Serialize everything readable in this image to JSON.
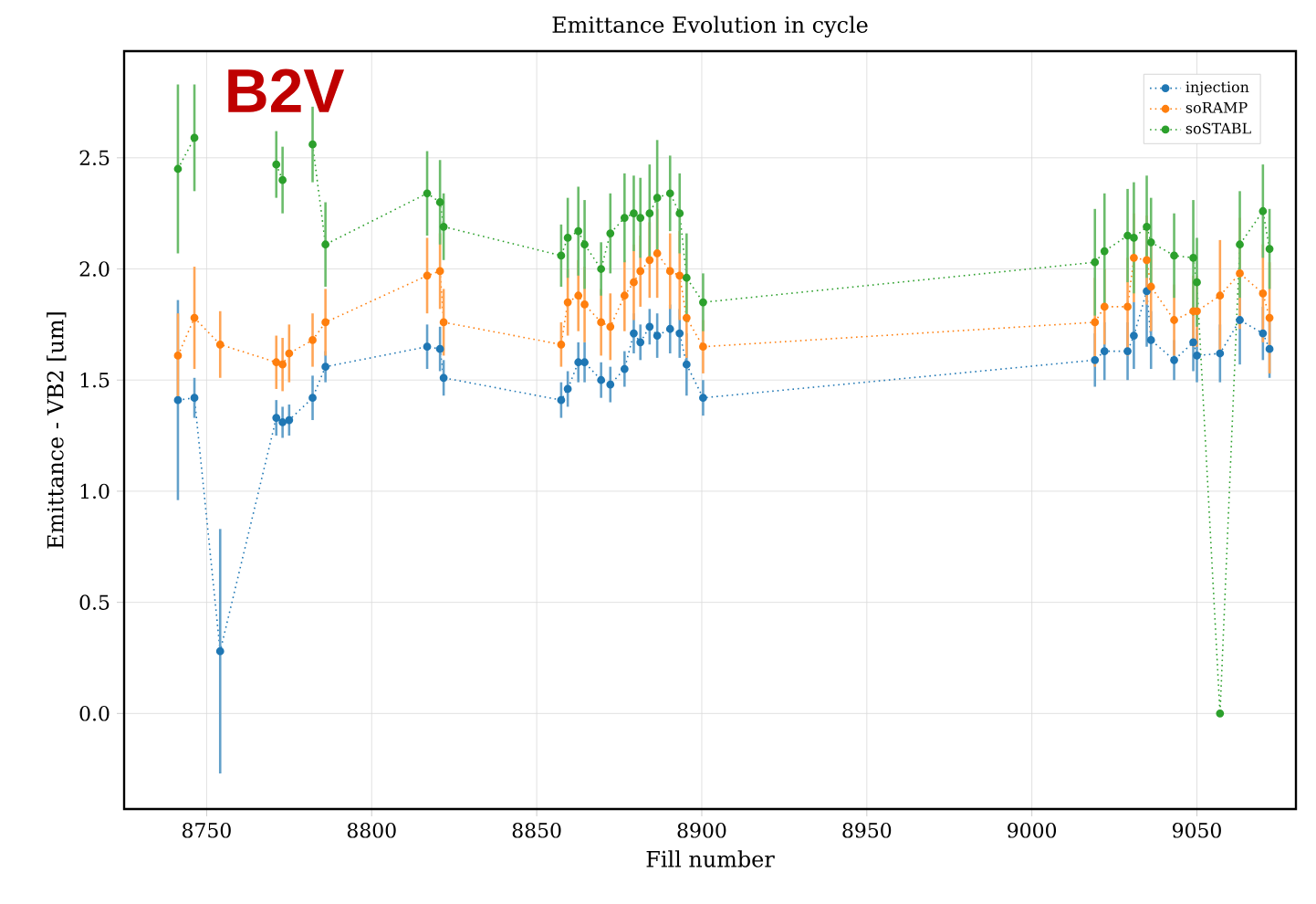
{
  "chart_data": {
    "type": "line",
    "title": "Emittance Evolution in cycle",
    "xlabel": "Fill number",
    "ylabel": "Emittance - VB2 [um]",
    "annotations": [
      "B2V"
    ],
    "x": [
      8741.3,
      8746.3,
      8754.1,
      8771.1,
      8773.0,
      8775.0,
      8782.1,
      8786.0,
      8816.8,
      8820.7,
      8821.8,
      8857.4,
      8859.4,
      8862.6,
      8864.5,
      8869.5,
      8872.3,
      8876.6,
      8879.4,
      8881.4,
      8884.2,
      8886.5,
      8890.4,
      8893.3,
      8895.4,
      8900.4,
      9019.1,
      9022.0,
      9029.0,
      9030.9,
      9034.8,
      9036.1,
      9043.1,
      9048.9,
      9050.0,
      9057.0,
      9063.0,
      9070.0,
      9072.0
    ],
    "series": [
      {
        "name": "injection",
        "color": "#1f77b4",
        "values": [
          1.41,
          1.42,
          0.28,
          1.33,
          1.31,
          1.32,
          1.42,
          1.56,
          1.65,
          1.64,
          1.51,
          1.41,
          1.46,
          1.58,
          1.58,
          1.5,
          1.48,
          1.55,
          1.71,
          1.67,
          1.74,
          1.7,
          1.73,
          1.71,
          1.57,
          1.42,
          1.59,
          1.63,
          1.63,
          1.7,
          1.9,
          1.68,
          1.59,
          1.67,
          1.61,
          1.62,
          1.77,
          1.71,
          1.64
        ],
        "errors": [
          0.45,
          0.09,
          0.55,
          0.08,
          0.07,
          0.07,
          0.1,
          0.07,
          0.1,
          0.1,
          0.08,
          0.08,
          0.08,
          0.09,
          0.09,
          0.08,
          0.08,
          0.08,
          0.09,
          0.08,
          0.08,
          0.1,
          0.11,
          0.11,
          0.14,
          0.08,
          0.12,
          0.13,
          0.13,
          0.15,
          0.25,
          0.13,
          0.09,
          0.13,
          0.12,
          0.13,
          0.2,
          0.12,
          0.13
        ]
      },
      {
        "name": "soRAMP",
        "color": "#ff7f0e",
        "values": [
          1.61,
          1.78,
          1.66,
          1.58,
          1.57,
          1.62,
          1.68,
          1.76,
          1.97,
          1.99,
          1.76,
          1.66,
          1.85,
          1.88,
          1.84,
          1.76,
          1.74,
          1.88,
          1.94,
          1.99,
          2.04,
          2.07,
          1.99,
          1.97,
          1.78,
          1.65,
          1.76,
          1.83,
          1.83,
          2.05,
          2.04,
          1.92,
          1.77,
          1.81,
          1.81,
          1.88,
          1.98,
          1.89,
          1.78
        ],
        "errors": [
          0.19,
          0.23,
          0.15,
          0.12,
          0.12,
          0.13,
          0.12,
          0.15,
          0.17,
          0.17,
          0.15,
          0.1,
          0.15,
          0.16,
          0.17,
          0.15,
          0.15,
          0.16,
          0.17,
          0.16,
          0.17,
          0.2,
          0.17,
          0.2,
          0.18,
          0.12,
          0.2,
          0.17,
          0.22,
          0.2,
          0.2,
          0.2,
          0.16,
          0.16,
          0.16,
          0.25,
          0.25,
          0.22,
          0.25
        ]
      },
      {
        "name": "soSTABL",
        "color": "#2ca02c",
        "values": [
          2.45,
          2.59,
          null,
          2.47,
          2.4,
          null,
          2.56,
          2.11,
          2.34,
          2.3,
          2.19,
          2.06,
          2.14,
          2.17,
          2.11,
          2.0,
          2.16,
          2.23,
          2.25,
          2.23,
          2.25,
          2.32,
          2.34,
          2.25,
          1.96,
          1.85,
          2.03,
          2.08,
          2.15,
          2.14,
          2.19,
          2.12,
          2.06,
          2.05,
          1.94,
          0.0,
          2.11,
          2.26,
          2.09
        ],
        "errors": [
          0.38,
          0.24,
          null,
          0.15,
          0.15,
          null,
          0.17,
          0.19,
          0.19,
          0.19,
          0.15,
          0.14,
          0.18,
          0.2,
          0.2,
          0.12,
          0.18,
          0.2,
          0.17,
          0.18,
          0.22,
          0.26,
          0.17,
          0.18,
          0.2,
          0.13,
          0.24,
          0.26,
          0.21,
          0.25,
          0.23,
          0.2,
          0.19,
          0.26,
          0.2,
          null,
          0.24,
          0.21,
          0.18
        ]
      }
    ],
    "xlim": [
      8725,
      9080
    ],
    "ylim": [
      -0.43,
      2.98
    ],
    "xticks": [
      8750,
      8800,
      8850,
      8900,
      8950,
      9000,
      9050
    ],
    "yticks": [
      {
        "value": 0,
        "label": "0.0"
      },
      0.5,
      {
        "value": 1,
        "label": "1.0"
      },
      1.5,
      {
        "value": 2,
        "label": "2.0"
      },
      2.5
    ],
    "grid": true,
    "legend": "top right",
    "marker": "circle",
    "line_style": "dotted"
  }
}
